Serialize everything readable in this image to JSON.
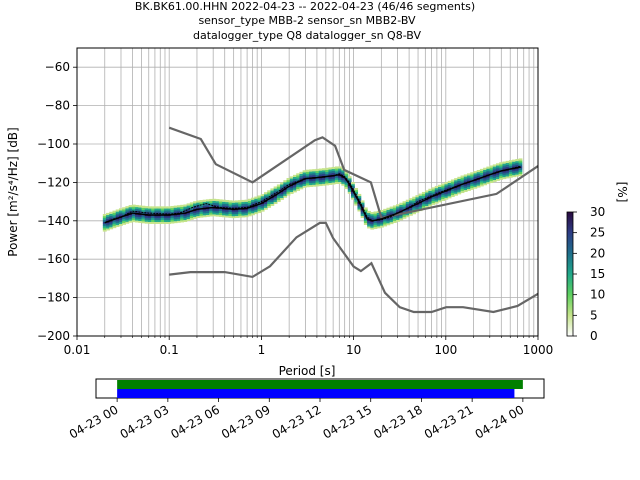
{
  "header": {
    "title_line1": "BK.BK61.00.HHN   2022-04-23 -- 2022-04-23  (46/46 segments)",
    "title_line2": "sensor_type MBB-2 sensor_sn MBB2-BV",
    "title_line3": "datalogger_type Q8 datalogger_sn Q8-BV"
  },
  "chart_data": [
    {
      "type": "heatmap",
      "xlabel": "Period [s]",
      "ylabel": "Power [m²/s⁴/Hz] [dB]",
      "xscale": "log",
      "xlim": [
        0.01,
        1000
      ],
      "ylim": [
        -200,
        -50
      ],
      "grid": true,
      "x_tick_labels": [
        "0.01",
        "0.1",
        "1",
        "10",
        "100",
        "1000"
      ],
      "x_ticks": [
        0.01,
        0.1,
        1,
        10,
        100,
        1000
      ],
      "y_ticks": [
        -200,
        -180,
        -160,
        -140,
        -120,
        -100,
        -80,
        -60
      ],
      "y_tick_labels": [
        "−200",
        "−180",
        "−160",
        "−140",
        "−120",
        "−100",
        "−80",
        "−60"
      ],
      "colorbar": {
        "label": "[%]",
        "range": [
          0,
          30
        ],
        "ticks": [
          0,
          5,
          10,
          15,
          20,
          25,
          30
        ],
        "tick_labels": [
          "0",
          "5",
          "10",
          "15",
          "20",
          "25",
          "30"
        ],
        "colormap": [
          "#ffffff",
          "#c6e48b",
          "#5fd05f",
          "#21a88a",
          "#1f6f8b",
          "#2d3d85",
          "#2a0a3f"
        ]
      },
      "noise_model_high": {
        "color": "#666666",
        "x": [
          0.1,
          0.22,
          0.32,
          0.8,
          3.8,
          4.6,
          6.3,
          7.9,
          15.4,
          20,
          354.8,
          1000
        ],
        "y": [
          -91.5,
          -97.4,
          -110.5,
          -120,
          -98,
          -96.5,
          -101,
          -113.5,
          -120,
          -138.5,
          -126,
          -111.5
        ]
      },
      "noise_model_low": {
        "color": "#666666",
        "x": [
          0.1,
          0.17,
          0.4,
          0.8,
          1.24,
          2.4,
          4.3,
          5,
          6,
          10,
          12,
          15.6,
          21.9,
          31.6,
          45,
          70,
          101,
          154,
          328,
          600,
          1000
        ],
        "y": [
          -168,
          -166.7,
          -166.7,
          -169.2,
          -163.7,
          -148.6,
          -141.1,
          -141.1,
          -149,
          -163.8,
          -166.2,
          -162.1,
          -177.5,
          -185,
          -187.5,
          -187.5,
          -185,
          -185,
          -187.5,
          -184.4,
          -178
        ]
      },
      "mean_psd": {
        "color": "#000000",
        "x": [
          0.02,
          0.025,
          0.03,
          0.04,
          0.06,
          0.1,
          0.13,
          0.18,
          0.25,
          0.35,
          0.5,
          0.7,
          1,
          1.5,
          2,
          3,
          4,
          5,
          6,
          7,
          8,
          9,
          10,
          12,
          14,
          16,
          20,
          25,
          30,
          40,
          50,
          70,
          100,
          150,
          200,
          300,
          400,
          500,
          600,
          650
        ],
        "y": [
          -141,
          -139,
          -138,
          -135,
          -136,
          -136.5,
          -136,
          -133,
          -131,
          -133,
          -133.5,
          -133,
          -130,
          -125,
          -121,
          -118,
          -117.5,
          -117,
          -116.5,
          -115.5,
          -117,
          -120,
          -124,
          -131,
          -138,
          -140,
          -139.5,
          -138,
          -136,
          -133,
          -130,
          -127,
          -124,
          -121,
          -119,
          -116,
          -114,
          -113,
          -112,
          -111.5
        ]
      },
      "mode_psd": {
        "color": "#000000",
        "x": [
          0.02,
          0.03,
          0.04,
          0.06,
          0.1,
          0.15,
          0.2,
          0.3,
          0.5,
          0.7,
          1,
          1.5,
          2,
          3,
          4,
          5,
          6,
          7,
          8,
          9,
          10,
          12,
          14,
          16,
          20,
          30,
          50,
          70,
          100,
          150,
          200,
          300,
          400,
          500,
          650
        ],
        "y": [
          -141,
          -138,
          -136,
          -137,
          -137,
          -136,
          -134,
          -133,
          -134,
          -133.5,
          -131,
          -126,
          -122,
          -118,
          -117.5,
          -117,
          -116.5,
          -116,
          -117.5,
          -121,
          -125,
          -132,
          -139,
          -140,
          -139,
          -136,
          -131,
          -127.5,
          -124.5,
          -121,
          -119,
          -116,
          -114,
          -113,
          -112
        ]
      }
    },
    {
      "type": "timeline",
      "x_tick_labels": [
        "04-23 00",
        "04-23 03",
        "04-23 06",
        "04-23 09",
        "04-23 12",
        "04-23 15",
        "04-23 18",
        "04-23 21",
        "04-24 00"
      ],
      "x_ticks_hours": [
        0,
        3,
        6,
        9,
        12,
        15,
        18,
        21,
        24
      ],
      "xlim_hours": [
        -1.25,
        25.25
      ],
      "bars": [
        {
          "color": "#008000",
          "start_hour": 0,
          "end_hour": 24.0
        },
        {
          "color": "#0000ff",
          "start_hour": 0,
          "end_hour": 23.5
        }
      ]
    }
  ]
}
